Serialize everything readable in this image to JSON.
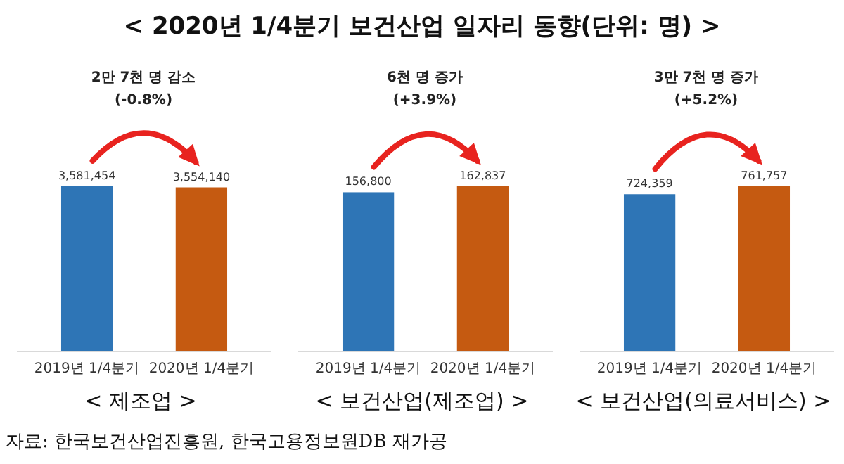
{
  "chart_data": [
    {
      "type": "bar",
      "title": "< 2020년 1/4분기 보건산업 일자리 동향(단위: 명) >",
      "xlabel": "< 제조업 >",
      "categories": [
        "2019년 1/4분기",
        "2020년 1/4분기"
      ],
      "values": [
        3581454,
        3554140
      ],
      "value_labels": [
        "3,581,454",
        "3,554,140"
      ],
      "colors": [
        "#2e75b6",
        "#c55a11"
      ],
      "annotations": [
        "2만 7천 명 감소",
        "(-0.8%)",
        "자료: 한국보건산업진흥원, 한국고용정보원DB 재가공"
      ]
    },
    {
      "type": "bar",
      "xlabel": "< 보건산업(제조업) >",
      "categories": [
        "2019년 1/4분기",
        "2020년 1/4분기"
      ],
      "values": [
        156800,
        162837
      ],
      "value_labels": [
        "156,800",
        "162,837"
      ],
      "colors": [
        "#2e75b6",
        "#c55a11"
      ],
      "annotations": [
        "6천 명 증가",
        "(+3.9%)"
      ]
    },
    {
      "type": "bar",
      "xlabel": "< 보건산업(의료서비스) >",
      "categories": [
        "2019년 1/4분기",
        "2020년 1/4분기"
      ],
      "values": [
        724359,
        761757
      ],
      "value_labels": [
        "724,359",
        "761,757"
      ],
      "colors": [
        "#2e75b6",
        "#c55a11"
      ],
      "annotations": [
        "3만 7천 명 증가",
        "(+5.2%)"
      ]
    }
  ]
}
